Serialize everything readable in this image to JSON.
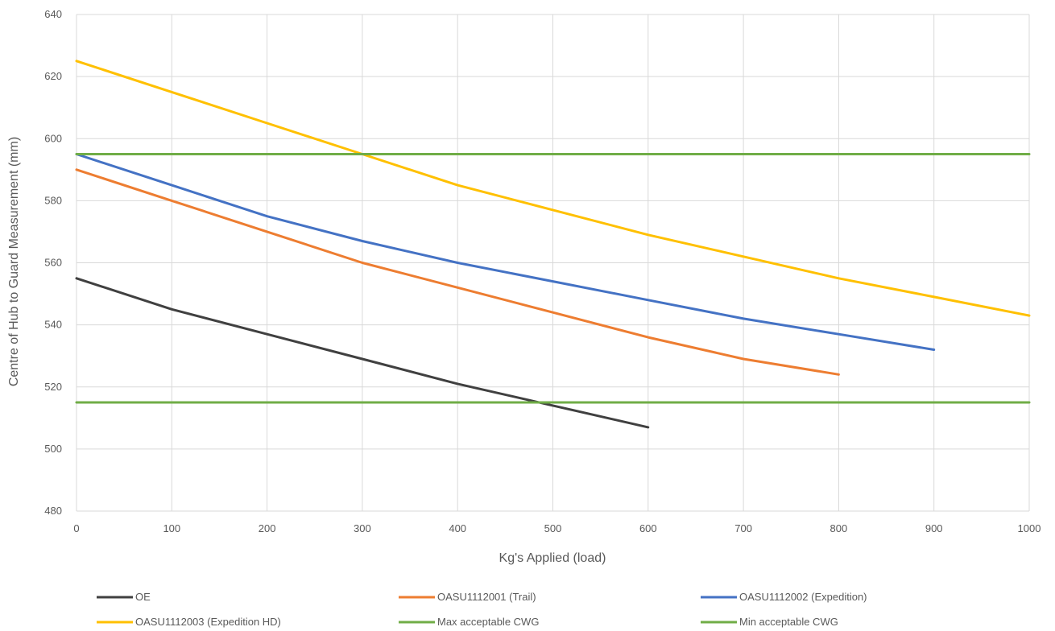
{
  "chart_data": {
    "type": "line",
    "xlabel": "Kg's Applied (load)",
    "ylabel": "Centre of Hub to Guard Measurement (mm)",
    "xlim": [
      0,
      1000
    ],
    "ylim": [
      480,
      640
    ],
    "x_ticks": [
      0,
      100,
      200,
      300,
      400,
      500,
      600,
      700,
      800,
      900,
      1000
    ],
    "y_ticks": [
      480,
      500,
      520,
      540,
      560,
      580,
      600,
      620,
      640
    ],
    "grid": true,
    "legend_position": "bottom",
    "series": [
      {
        "name": "OE",
        "color": "#404040",
        "x": [
          0,
          100,
          200,
          300,
          400,
          500,
          600
        ],
        "y": [
          555,
          545,
          537,
          529,
          521,
          514,
          507
        ]
      },
      {
        "name": "OASU1112001 (Trail)",
        "color": "#ed7d31",
        "x": [
          0,
          100,
          200,
          300,
          400,
          500,
          600,
          700,
          800
        ],
        "y": [
          590,
          580,
          570,
          560,
          552,
          544,
          536,
          529,
          524
        ]
      },
      {
        "name": "OASU1112002 (Expedition)",
        "color": "#4472c4",
        "x": [
          0,
          100,
          200,
          300,
          400,
          500,
          600,
          700,
          800,
          900
        ],
        "y": [
          595,
          585,
          575,
          567,
          560,
          554,
          548,
          542,
          537,
          532
        ]
      },
      {
        "name": "OASU1112003 (Expedition HD)",
        "color": "#ffc000",
        "x": [
          0,
          100,
          200,
          300,
          400,
          500,
          600,
          700,
          800,
          900,
          1000
        ],
        "y": [
          625,
          615,
          605,
          595,
          585,
          577,
          569,
          562,
          555,
          549,
          543
        ]
      },
      {
        "name": "Max acceptable CWG",
        "color": "#70ad47",
        "x": [
          0,
          1000
        ],
        "y": [
          595,
          595
        ]
      },
      {
        "name": "Min acceptable CWG",
        "color": "#70ad47",
        "x": [
          0,
          1000
        ],
        "y": [
          515,
          515
        ]
      }
    ]
  }
}
